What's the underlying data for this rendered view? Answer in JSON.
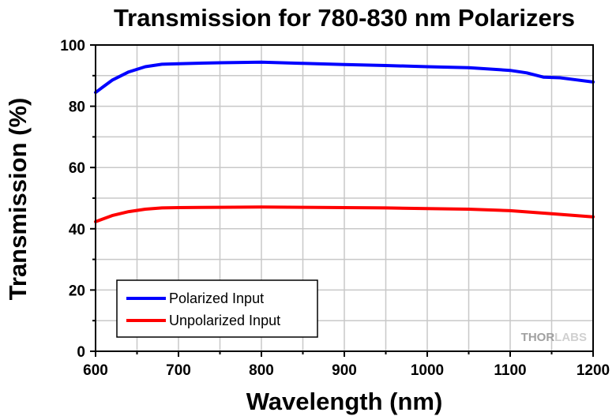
{
  "chart_data": {
    "type": "line",
    "title": "Transmission for 780-830 nm Polarizers",
    "xlabel": "Wavelength (nm)",
    "ylabel": "Transmission (%)",
    "xlim": [
      600,
      1200
    ],
    "ylim": [
      0,
      100
    ],
    "x_ticks": [
      600,
      700,
      800,
      900,
      1000,
      1100,
      1200
    ],
    "y_ticks": [
      0,
      20,
      40,
      60,
      80,
      100
    ],
    "grid": true,
    "legend_position": "bottom-left",
    "series": [
      {
        "name": "Polarized Input",
        "color": "#0000ff",
        "x": [
          600,
          620,
          640,
          660,
          680,
          700,
          750,
          800,
          850,
          900,
          950,
          1000,
          1050,
          1100,
          1120,
          1140,
          1160,
          1180,
          1200
        ],
        "y": [
          84.5,
          88.5,
          91.2,
          92.9,
          93.7,
          93.9,
          94.2,
          94.4,
          94.0,
          93.6,
          93.3,
          92.9,
          92.6,
          91.7,
          90.9,
          89.5,
          89.3,
          88.6,
          87.9
        ]
      },
      {
        "name": "Unpolarized Input",
        "color": "#ff0000",
        "x": [
          600,
          620,
          640,
          660,
          680,
          700,
          750,
          800,
          850,
          900,
          950,
          1000,
          1050,
          1100,
          1150,
          1200
        ],
        "y": [
          42.3,
          44.3,
          45.6,
          46.4,
          46.8,
          46.9,
          47.0,
          47.1,
          47.0,
          46.9,
          46.8,
          46.6,
          46.4,
          45.9,
          44.9,
          43.9
        ]
      }
    ]
  },
  "logo": {
    "text_a": "THOR",
    "text_b": "LABS"
  },
  "colors": {
    "grid": "#c8c8c8",
    "axis": "#000000"
  }
}
